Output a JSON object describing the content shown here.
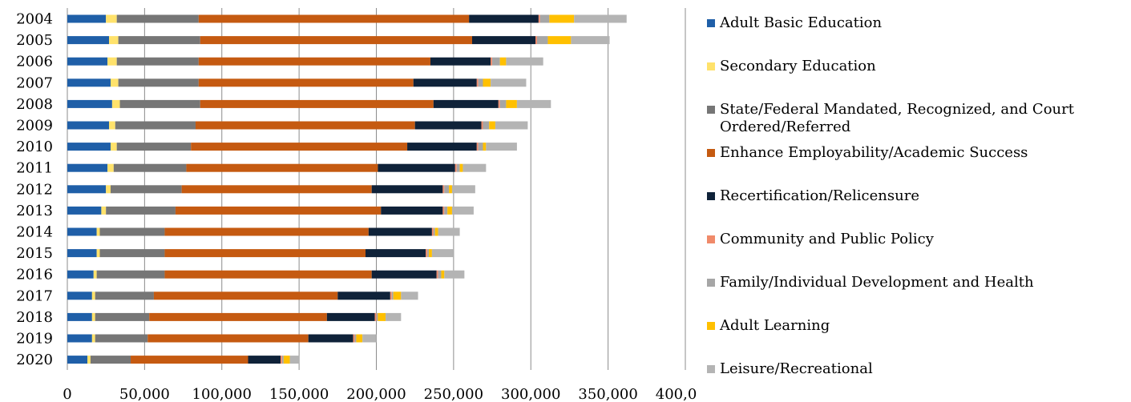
{
  "chart_data": {
    "type": "bar",
    "orientation": "horizontal",
    "stacked": true,
    "categories": [
      "2004",
      "2005",
      "2006",
      "2007",
      "2008",
      "2009",
      "2010",
      "2011",
      "2012",
      "2013",
      "2014",
      "2015",
      "2016",
      "2017",
      "2018",
      "2019",
      "2020"
    ],
    "xlim": [
      0,
      400000
    ],
    "xticks": [
      "0",
      "50,000",
      "100,000",
      "150,000",
      "200,000",
      "250,000",
      "300,000",
      "350,000",
      "400,000"
    ],
    "grid": "vertical",
    "legend_position": "right",
    "series": [
      {
        "name": "Adult Basic Education",
        "color": "#1f5fa8",
        "values": [
          25000,
          27000,
          26000,
          28000,
          29000,
          27000,
          28000,
          26000,
          25000,
          22000,
          19000,
          19000,
          17000,
          16000,
          16000,
          16000,
          13000
        ]
      },
      {
        "name": "Secondary Education",
        "color": "#ffe26b",
        "values": [
          7000,
          6000,
          6000,
          5000,
          5000,
          4000,
          4000,
          4000,
          3000,
          3000,
          2000,
          2000,
          2000,
          2000,
          2000,
          2000,
          2000
        ]
      },
      {
        "name": "State/Federal Mandated, Recognized, and Court Ordered/Referred",
        "color": "#767676",
        "values": [
          53000,
          53000,
          53000,
          52000,
          52000,
          52000,
          48000,
          47000,
          46000,
          45000,
          42000,
          42000,
          44000,
          38000,
          35000,
          34000,
          26000
        ]
      },
      {
        "name": "Enhance Employability/Academic Success",
        "color": "#c55a11",
        "values": [
          175000,
          176000,
          150000,
          139000,
          151000,
          142000,
          140000,
          124000,
          123000,
          133000,
          132000,
          130000,
          134000,
          119000,
          115000,
          104000,
          76000
        ]
      },
      {
        "name": "Recertification/Relicensure",
        "color": "#0f2239",
        "values": [
          45000,
          41000,
          39000,
          41000,
          42000,
          43000,
          45000,
          50000,
          46000,
          40000,
          41000,
          39000,
          42000,
          34000,
          31000,
          29000,
          21000
        ]
      },
      {
        "name": "Community and Public Policy",
        "color": "#f08a6a",
        "values": [
          1000,
          1000,
          1000,
          1000,
          1000,
          1000,
          1000,
          1000,
          1000,
          1000,
          1000,
          1000,
          1000,
          1000,
          1000,
          1000,
          1000
        ]
      },
      {
        "name": "Family/Individual Development and Health",
        "color": "#a6a6a6",
        "values": [
          6000,
          7000,
          5000,
          3000,
          4000,
          4000,
          3000,
          2000,
          3000,
          2000,
          1000,
          1000,
          2000,
          1000,
          1000,
          1000,
          1000
        ]
      },
      {
        "name": "Adult Learning",
        "color": "#ffc000",
        "values": [
          16000,
          15000,
          4000,
          5000,
          7000,
          4000,
          2000,
          2000,
          2000,
          3000,
          2000,
          2000,
          2000,
          5000,
          5000,
          4000,
          4000
        ]
      },
      {
        "name": "Leisure/Recreational",
        "color": "#b4b4b4",
        "values": [
          34000,
          25000,
          24000,
          23000,
          22000,
          21000,
          20000,
          15000,
          15000,
          14000,
          14000,
          14000,
          13000,
          11000,
          10000,
          9000,
          6000
        ]
      }
    ]
  }
}
